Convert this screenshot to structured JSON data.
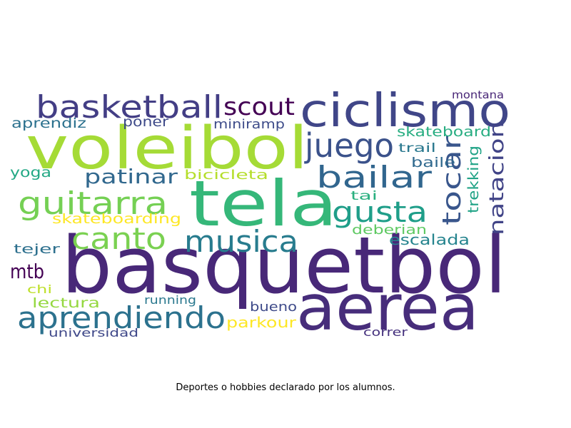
{
  "wordcloud": {
    "words": [
      {
        "text": "basquetbol",
        "color": "#482878"
      },
      {
        "text": "aerea",
        "color": "#472d7b"
      },
      {
        "text": "tela",
        "color": "#35b779"
      },
      {
        "text": "voleibol",
        "color": "#a5db36"
      },
      {
        "text": "ciclismo",
        "color": "#404688"
      },
      {
        "text": "basketball",
        "color": "#433e85"
      },
      {
        "text": "aprendiendo",
        "color": "#2c728e"
      },
      {
        "text": "musica",
        "color": "#287c8e"
      },
      {
        "text": "canto",
        "color": "#7ad151"
      },
      {
        "text": "guitarra",
        "color": "#75d054"
      },
      {
        "text": "bailar",
        "color": "#31668e"
      },
      {
        "text": "gusta",
        "color": "#1f9e89"
      },
      {
        "text": "juego",
        "color": "#3b528b"
      },
      {
        "text": "tocar",
        "color": "#39568c"
      },
      {
        "text": "natacion",
        "color": "#414487"
      },
      {
        "text": "scout",
        "color": "#440154"
      },
      {
        "text": "patinar",
        "color": "#31688e"
      },
      {
        "text": "mtb",
        "color": "#440154"
      },
      {
        "text": "trekking",
        "color": "#20a386"
      },
      {
        "text": "skateboard",
        "color": "#27ad81"
      },
      {
        "text": "aprendiz",
        "color": "#2c718e"
      },
      {
        "text": "poner",
        "color": "#3e4a89"
      },
      {
        "text": "miniramp",
        "color": "#3e4c8a"
      },
      {
        "text": "montana",
        "color": "#482677"
      },
      {
        "text": "yoga",
        "color": "#22a884"
      },
      {
        "text": "bicicleta",
        "color": "#b5de2b"
      },
      {
        "text": "skateboarding",
        "color": "#fde725"
      },
      {
        "text": "trail",
        "color": "#2a788e"
      },
      {
        "text": "baile",
        "color": "#30698e"
      },
      {
        "text": "tai",
        "color": "#29af7f"
      },
      {
        "text": "deberian",
        "color": "#5ec962"
      },
      {
        "text": "escalada",
        "color": "#25848e"
      },
      {
        "text": "tejer",
        "color": "#2d708e"
      },
      {
        "text": "chi",
        "color": "#bddf26"
      },
      {
        "text": "lectura",
        "color": "#95d840"
      },
      {
        "text": "running",
        "color": "#2a788e"
      },
      {
        "text": "bueno",
        "color": "#3e4a89"
      },
      {
        "text": "parkour",
        "color": "#fde725"
      },
      {
        "text": "universidad",
        "color": "#3f4889"
      },
      {
        "text": "correr",
        "color": "#46327e"
      }
    ]
  },
  "caption": "Deportes o hobbies declarado por los alumnos."
}
